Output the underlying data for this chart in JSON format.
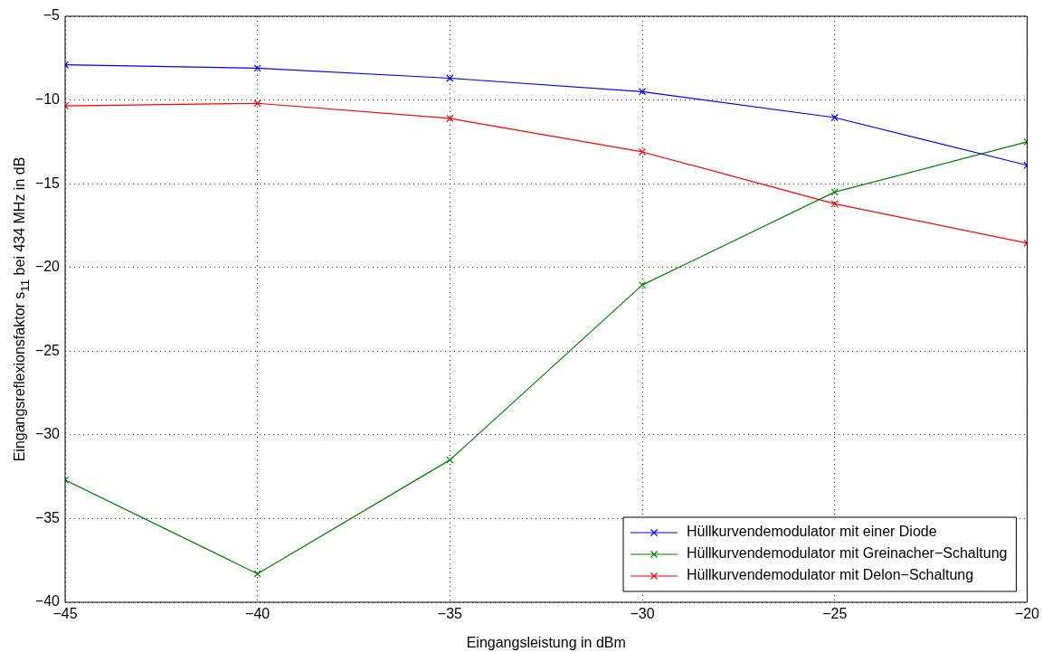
{
  "chart_data": {
    "type": "line",
    "xlabel": "Eingangsleistung in dBm",
    "ylabel": "Eingangsreflexionsfaktor s$_{11}$ bei 434 MHz in dB",
    "x": [
      -45,
      -40,
      -35,
      -30,
      -25,
      -20
    ],
    "xlim": [
      -45,
      -20
    ],
    "xticks": [
      -45,
      -40,
      -35,
      -30,
      -25,
      -20
    ],
    "ylim": [
      -40,
      -5
    ],
    "yticks": [
      -40,
      -35,
      -30,
      -25,
      -20,
      -15,
      -10,
      -5
    ],
    "grid": true,
    "legend": "bottom right",
    "marker": "cross",
    "line_style": "solid",
    "series": [
      {
        "name": "Hüllkurvendemodulator mit einer Diode",
        "color": "#0000ff",
        "values": [
          -7.9,
          -8.1,
          -8.7,
          -9.5,
          -11.05,
          -13.9
        ]
      },
      {
        "name": "Hüllkurvendemodulator mit Greinacher−Schaltung",
        "color": "#008000",
        "values": [
          -32.7,
          -38.3,
          -31.5,
          -21.05,
          -15.5,
          -12.5
        ]
      },
      {
        "name": "Hüllkurvendemodulator mit Delon−Schaltung",
        "color": "#ff0000",
        "values": [
          -10.35,
          -10.2,
          -11.1,
          -13.1,
          -16.2,
          -18.55
        ]
      }
    ]
  }
}
